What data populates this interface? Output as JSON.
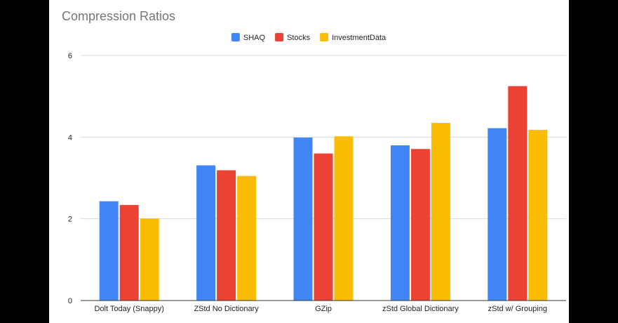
{
  "chart_data": {
    "type": "bar",
    "title": "Compression Ratios",
    "xlabel": "",
    "ylabel": "",
    "categories": [
      "Dolt Today (Snappy)",
      "ZStd No Dictionary",
      "GZip",
      "zStd Global Dictionary",
      "zStd w/ Grouping"
    ],
    "series": [
      {
        "name": "SHAQ",
        "color": "#4285f4",
        "values": [
          2.43,
          3.31,
          3.99,
          3.8,
          4.22
        ]
      },
      {
        "name": "Stocks",
        "color": "#ea4335",
        "values": [
          2.34,
          3.19,
          3.6,
          3.71,
          5.25
        ]
      },
      {
        "name": "InvestmentData",
        "color": "#fbbc04",
        "values": [
          2.01,
          3.05,
          4.02,
          4.35,
          4.18
        ]
      }
    ],
    "ylim": [
      0,
      6
    ],
    "yticks": [
      0,
      2,
      4,
      6
    ],
    "grid": true,
    "legend_position": "top-center"
  }
}
